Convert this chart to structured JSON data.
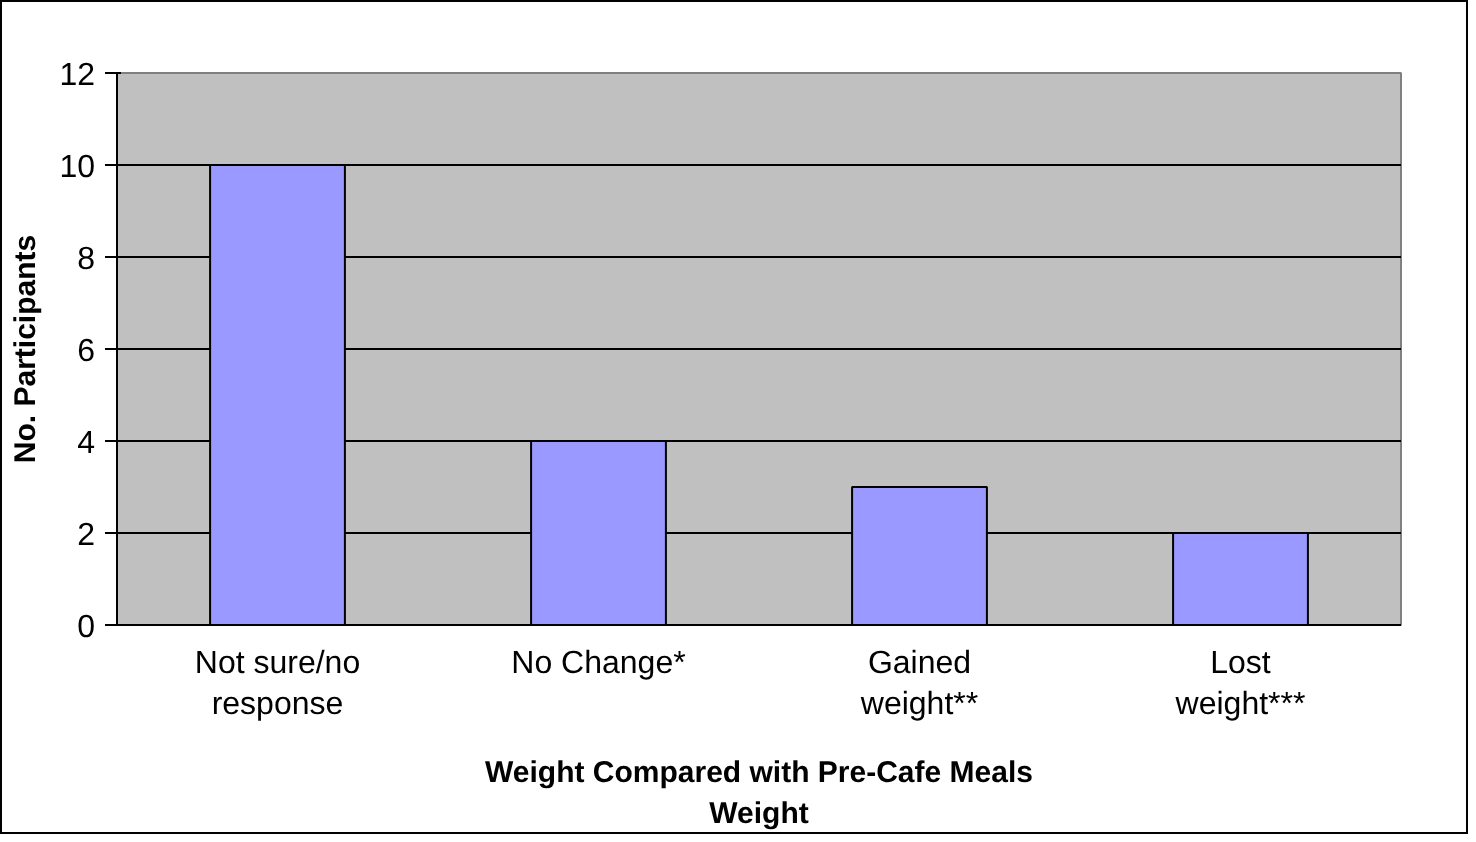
{
  "chart_data": {
    "type": "bar",
    "categories": [
      "Not sure/no response",
      "No Change*",
      "Gained weight**",
      "Lost weight***"
    ],
    "values": [
      10,
      4,
      3,
      2
    ],
    "color": "#9999ff",
    "xlabel": "Weight Compared with Pre-Cafe Meals Weight",
    "ylabel": "No. Participants",
    "ylim": [
      0,
      12
    ],
    "yticks": [
      0,
      2,
      4,
      6,
      8,
      10,
      12
    ],
    "grid": "y"
  }
}
